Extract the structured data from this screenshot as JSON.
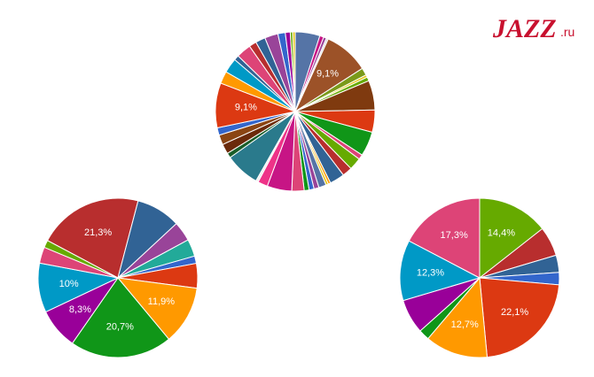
{
  "logo_main": "JAZZ",
  "logo_domain": ".ru",
  "chart_data": [
    {
      "type": "pie",
      "start_angle": 0,
      "values": [
        5,
        0.8,
        0.6,
        0.4,
        9.1,
        1.5,
        0.5,
        0.8,
        6,
        4.5,
        5,
        1,
        2.5,
        2,
        3,
        0.5,
        0.5,
        1.5,
        1,
        1,
        1,
        2.5,
        5,
        2,
        0.5,
        7,
        1,
        2,
        2,
        1.5,
        9.1,
        2.5,
        3,
        1,
        3,
        1.5,
        2,
        2.7,
        1.5,
        1,
        0.5,
        0.5
      ],
      "value_labels": [
        null,
        null,
        null,
        null,
        "9,1%",
        null,
        null,
        null,
        null,
        null,
        null,
        null,
        null,
        null,
        null,
        null,
        null,
        null,
        null,
        null,
        null,
        null,
        null,
        null,
        null,
        null,
        null,
        null,
        null,
        null,
        "9,1%",
        null,
        null,
        null,
        null,
        null,
        null,
        null,
        null,
        null,
        null,
        null
      ],
      "colors": [
        "#5574a6",
        "#c71585",
        "#994499",
        "#dddddd",
        "#9c5228",
        "#7a9a1a",
        "#e6c619",
        "#66aa00",
        "#7f3a0f",
        "#dc3912",
        "#109618",
        "#dd4477",
        "#66aa00",
        "#b82e2e",
        "#316395",
        "#ff9900",
        "#e6c619",
        "#5574a6",
        "#994499",
        "#3366cc",
        "#109618",
        "#dd4477",
        "#c71585",
        "#ee3388",
        "#eeeeee",
        "#2a7a8c",
        "#1a5e2a",
        "#6b2a0a",
        "#8b4513",
        "#3366cc",
        "#dc3912",
        "#ff9900",
        "#0099c6",
        "#316395",
        "#dd4477",
        "#b82e2e",
        "#316395",
        "#994499",
        "#3366cc",
        "#990099",
        "#66aa00",
        "#e6c619"
      ]
    },
    {
      "type": "pie",
      "start_angle": -62,
      "values": [
        21.3,
        9,
        4,
        3.5,
        1.5,
        5,
        11.9,
        20.7,
        8.3,
        10,
        3.3,
        1.5
      ],
      "value_labels": [
        "21,3%",
        null,
        null,
        null,
        null,
        null,
        "11,9%",
        "20,7%",
        "8,3%",
        "10%",
        null,
        null
      ],
      "colors": [
        "#b82e2e",
        "#316395",
        "#994499",
        "#22aa99",
        "#3366cc",
        "#dc3912",
        "#ff9900",
        "#109618",
        "#990099",
        "#0099c6",
        "#dd4477",
        "#66aa00"
      ]
    },
    {
      "type": "pie",
      "start_angle": 0,
      "values": [
        14.4,
        6,
        3.5,
        2.5,
        22.1,
        12.7,
        2.2,
        7,
        12.3,
        17.3
      ],
      "value_labels": [
        "14,4%",
        null,
        null,
        null,
        "22,1%",
        "12,7%",
        null,
        null,
        "12,3%",
        "17,3%"
      ],
      "colors": [
        "#66aa00",
        "#b82e2e",
        "#316395",
        "#3366cc",
        "#dc3912",
        "#ff9900",
        "#109618",
        "#990099",
        "#0099c6",
        "#dd4477"
      ]
    }
  ]
}
